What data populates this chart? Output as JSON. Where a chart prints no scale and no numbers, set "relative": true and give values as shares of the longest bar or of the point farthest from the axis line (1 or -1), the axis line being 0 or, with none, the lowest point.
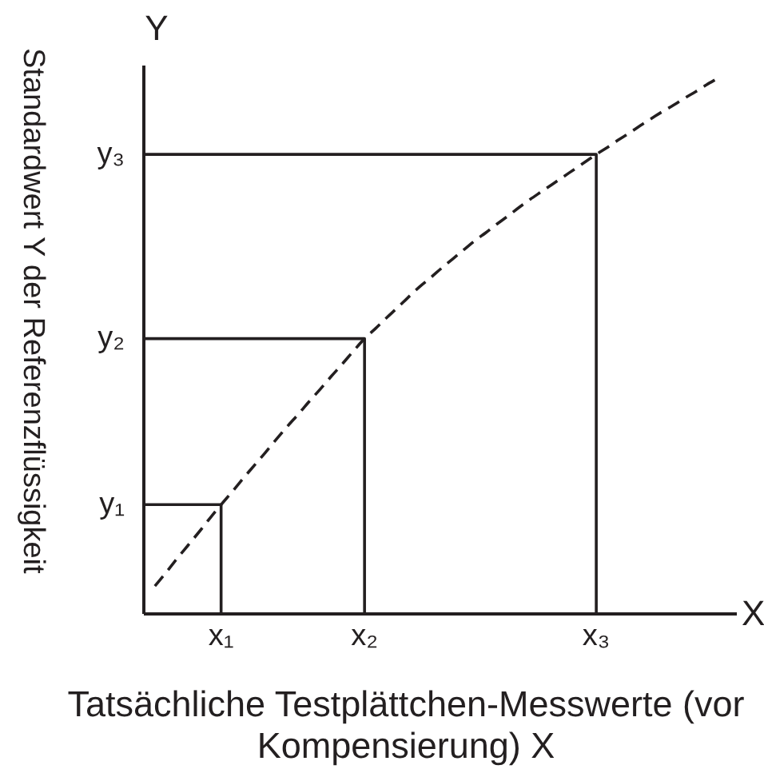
{
  "chart_data": {
    "type": "line",
    "xlabel": "Tatsächliche Testplättchen-Messwerte (vor Kompensierung) X",
    "ylabel": "Standardwert Y der Referenzflüssigkeit",
    "relative": true,
    "marker": "none",
    "line_style": "solid",
    "annotations": [
      "X",
      "Y",
      "y₁",
      "y₂",
      "y₃"
    ],
    "categories": [
      null,
      null,
      null,
      null,
      null,
      null,
      null,
      "x₁",
      null,
      null,
      null,
      null,
      null,
      null,
      null,
      null,
      null,
      null,
      null,
      null,
      "x₂",
      null,
      null,
      null,
      null,
      null,
      null,
      null,
      null,
      null,
      null,
      null,
      null,
      null,
      null,
      null,
      null,
      null,
      null,
      null,
      null,
      "x₃",
      null,
      null,
      null,
      null,
      null,
      null,
      null,
      null,
      null,
      null,
      null
    ],
    "series": [
      {
        "color": "#231f20",
        "line_style": "dashed",
        "values": [
          null,
          0.052,
          0.077,
          0.103,
          0.128,
          0.153,
          0.179,
          0.204,
          0.228,
          0.253,
          0.277,
          0.301,
          0.326,
          0.35,
          0.373,
          0.397,
          0.42,
          0.444,
          0.467,
          0.491,
          0.514,
          0.533,
          0.553,
          0.572,
          0.592,
          0.611,
          0.628,
          0.646,
          0.663,
          0.68,
          0.697,
          0.712,
          0.728,
          0.743,
          0.759,
          0.774,
          0.788,
          0.802,
          0.816,
          0.83,
          0.844,
          0.858,
          0.871,
          0.885,
          0.898,
          0.912,
          0.925,
          0.938,
          0.95,
          0.963,
          0.975,
          0.988,
          1.0
        ]
      },
      {
        "type": "step",
        "color": "#231f20",
        "values": [
          0.204,
          0.204,
          0.204,
          0.204,
          0.204,
          0.204,
          0.204,
          0,
          null,
          null,
          null,
          null,
          null,
          null,
          null,
          null,
          null,
          null,
          null,
          null,
          null,
          null,
          null,
          null,
          null,
          null,
          null,
          null,
          null,
          null,
          null,
          null,
          null,
          null,
          null,
          null,
          null,
          null,
          null,
          null,
          null,
          null,
          null,
          null,
          null,
          null,
          null,
          null,
          null,
          null,
          null,
          null,
          null
        ]
      },
      {
        "type": "step",
        "color": "#231f20",
        "values": [
          0.514,
          0.514,
          0.514,
          0.514,
          0.514,
          0.514,
          0.514,
          0.514,
          0.514,
          0.514,
          0.514,
          0.514,
          0.514,
          0.514,
          0.514,
          0.514,
          0.514,
          0.514,
          0.514,
          0.514,
          0,
          null,
          null,
          null,
          null,
          null,
          null,
          null,
          null,
          null,
          null,
          null,
          null,
          null,
          null,
          null,
          null,
          null,
          null,
          null,
          null,
          null,
          null,
          null,
          null,
          null,
          null,
          null,
          null,
          null,
          null,
          null,
          null
        ]
      },
      {
        "type": "step",
        "color": "#231f20",
        "values": [
          0.858,
          0.858,
          0.858,
          0.858,
          0.858,
          0.858,
          0.858,
          0.858,
          0.858,
          0.858,
          0.858,
          0.858,
          0.858,
          0.858,
          0.858,
          0.858,
          0.858,
          0.858,
          0.858,
          0.858,
          0.858,
          0.858,
          0.858,
          0.858,
          0.858,
          0.858,
          0.858,
          0.858,
          0.858,
          0.858,
          0.858,
          0.858,
          0.858,
          0.858,
          0.858,
          0.858,
          0.858,
          0.858,
          0.858,
          0.858,
          0.858,
          0,
          null,
          null,
          null,
          null,
          null,
          null,
          null,
          null,
          null,
          null,
          null
        ]
      }
    ]
  }
}
